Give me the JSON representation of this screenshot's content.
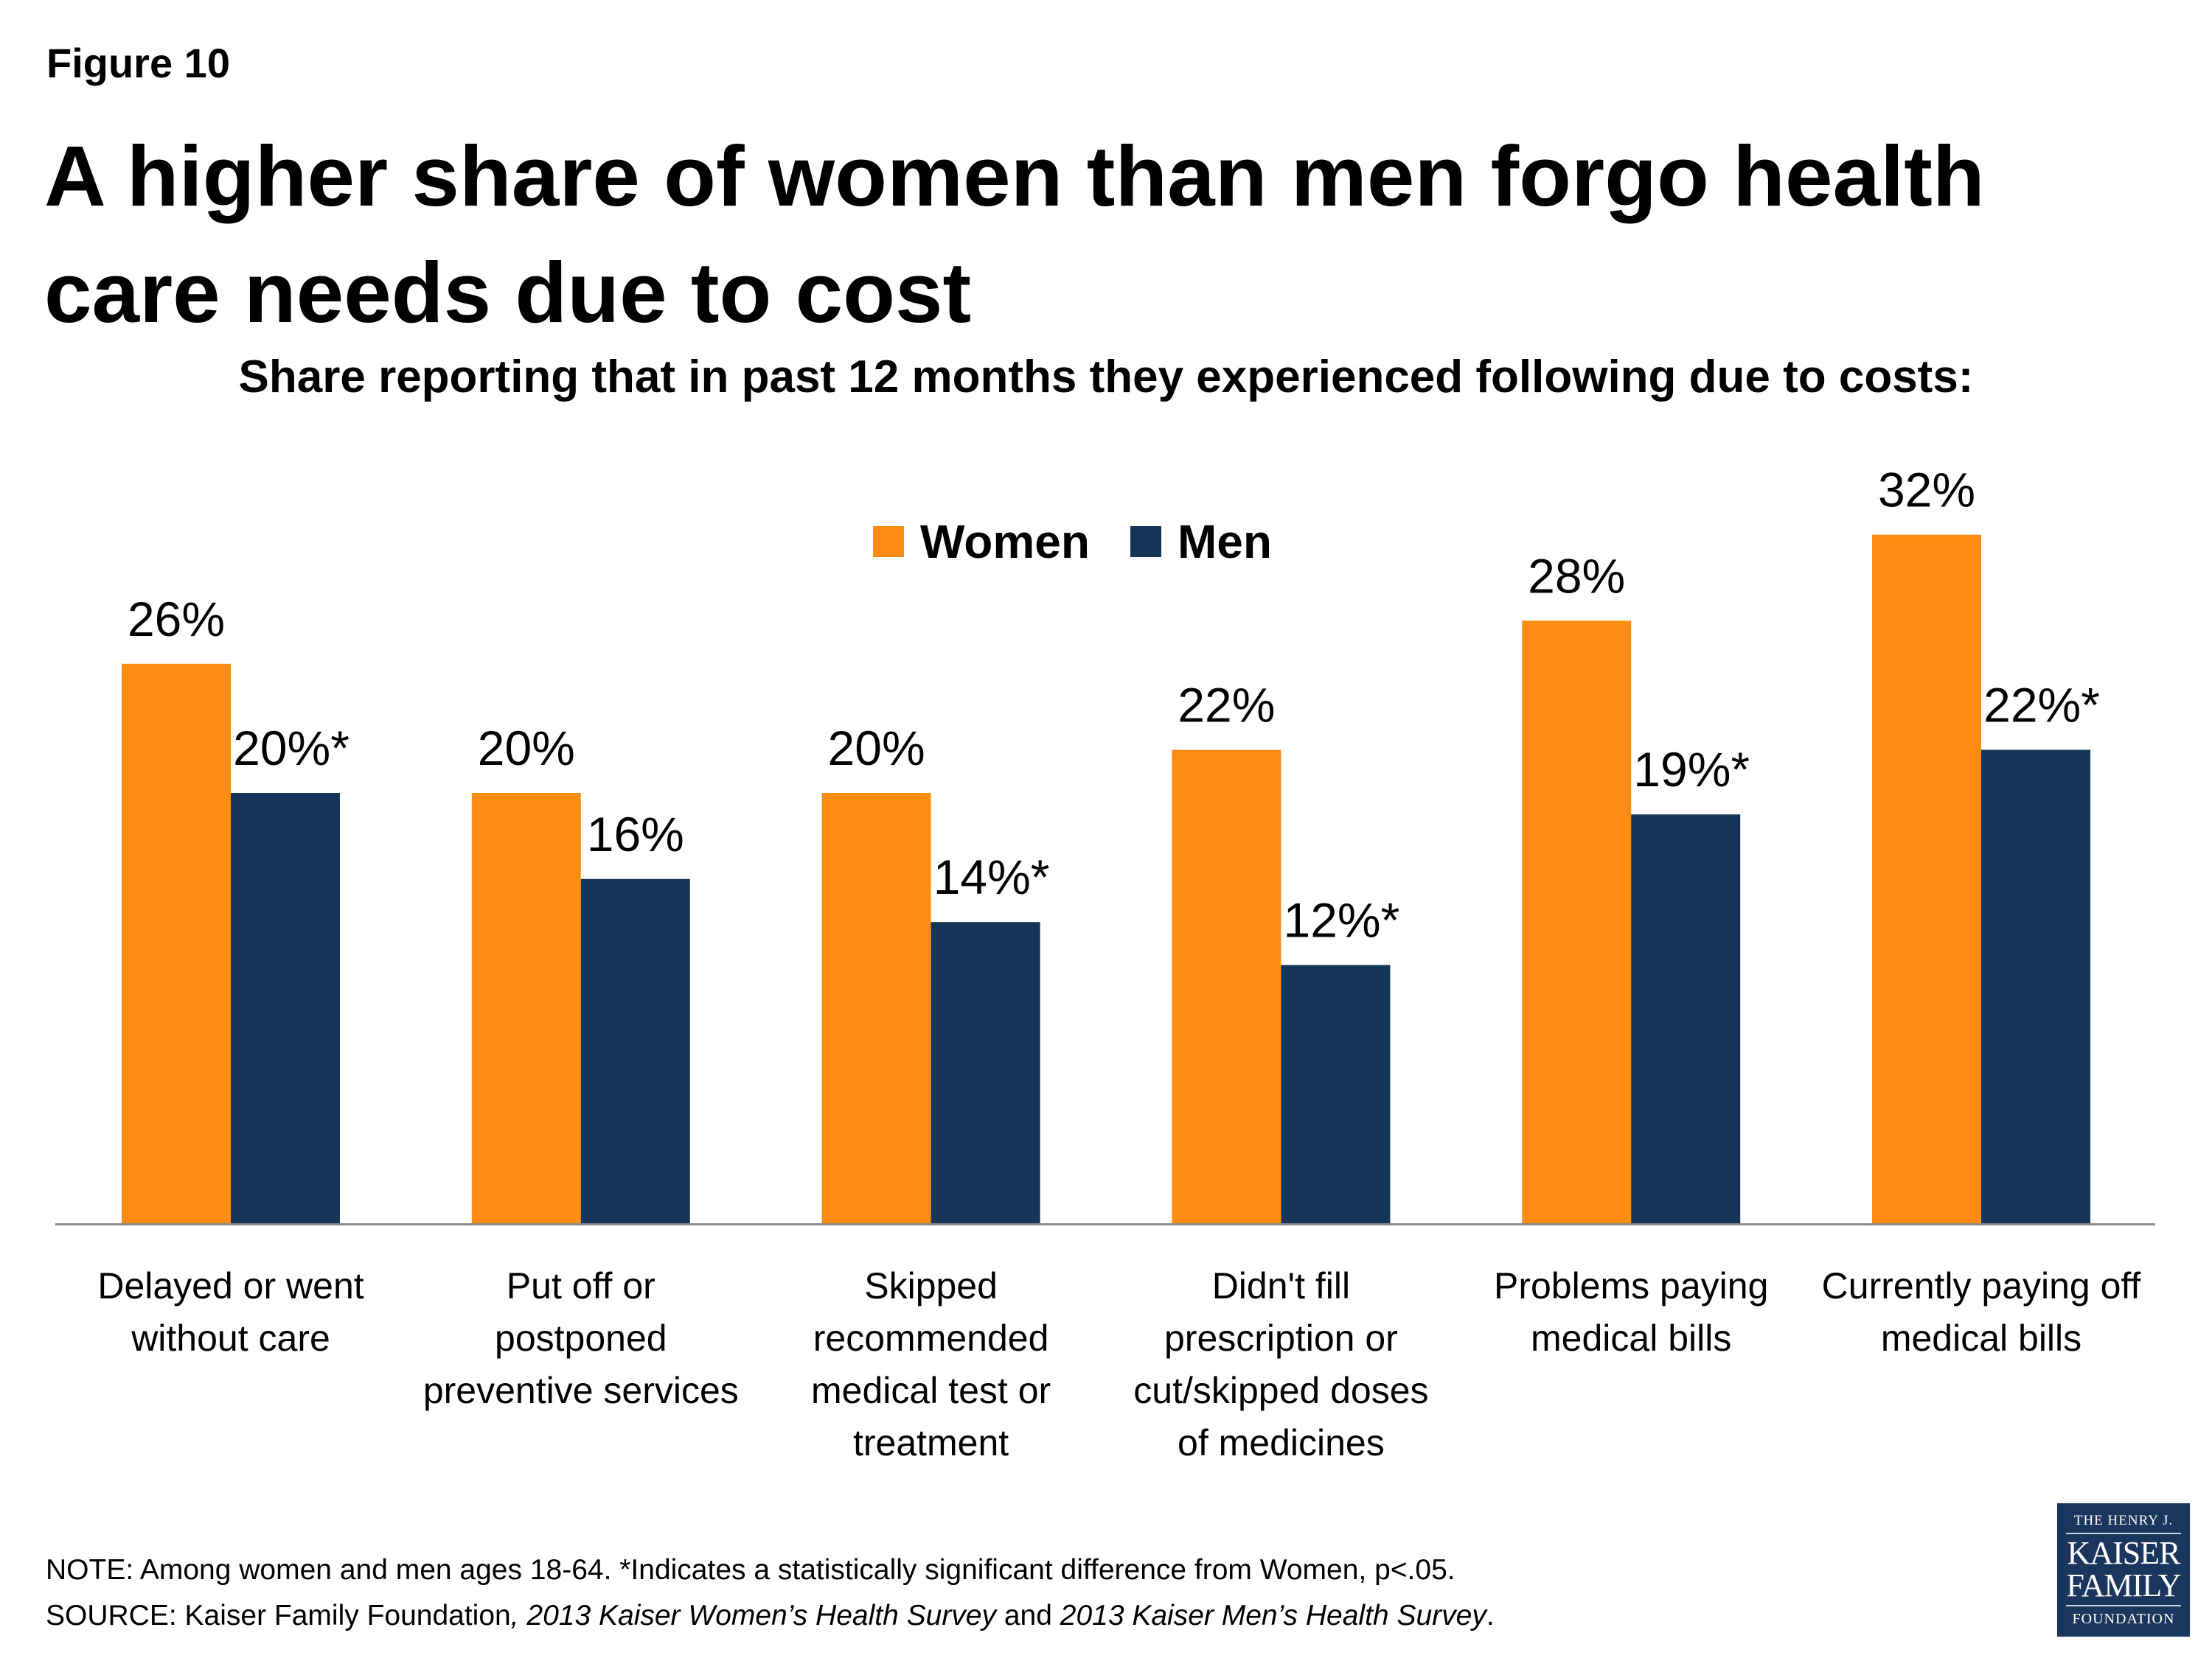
{
  "figure_label": "Figure 10",
  "title": "A higher share of women than men forgo health care needs due to cost",
  "subtitle": "Share reporting that in past 12 months they experienced following due to costs:",
  "colors": {
    "women": "#FF8C13",
    "men": "#163558",
    "axis": "#8C8C8C",
    "logo_bg": "#1B365D"
  },
  "legend": [
    {
      "label": "Women",
      "color": "#FF8C13"
    },
    {
      "label": "Men",
      "color": "#163558"
    }
  ],
  "chart_data": {
    "type": "bar",
    "title": "Share reporting that in past 12 months they experienced following due to costs:",
    "xlabel": "",
    "ylabel": "",
    "ylim": [
      0,
      32
    ],
    "grid": false,
    "legend_position": "top-center",
    "categories": [
      [
        "Delayed or went",
        "without care"
      ],
      [
        "Put off or",
        "postponed",
        "preventive services"
      ],
      [
        "Skipped",
        "recommended",
        "medical test or",
        "treatment"
      ],
      [
        "Didn't fill",
        "prescription or",
        "cut/skipped doses",
        "of medicines"
      ],
      [
        "Problems paying",
        "medical bills"
      ],
      [
        "Currently paying off",
        "medical bills"
      ]
    ],
    "series": [
      {
        "name": "Women",
        "values": [
          26,
          20,
          20,
          22,
          28,
          32
        ],
        "labels": [
          "26%",
          "20%",
          "20%",
          "22%",
          "28%",
          "32%"
        ]
      },
      {
        "name": "Men",
        "values": [
          20,
          16,
          14,
          12,
          19,
          22
        ],
        "labels": [
          "20%*",
          "16%",
          "14%*",
          "12%*",
          "19%*",
          "22%*"
        ]
      }
    ]
  },
  "footnote": {
    "note": "NOTE: Among women and men ages 18-64. *Indicates a statistically significant difference from Women, p<.05.",
    "source_prefix": "SOURCE: Kaiser Family Foundation",
    "source_italic_1": ", 2013 Kaiser Women’s Health Survey",
    "source_mid": " and ",
    "source_italic_2": "2013 Kaiser Men’s Health Survey",
    "source_end": "."
  },
  "logo": {
    "line1": "THE HENRY J.",
    "line2": "KAISER",
    "line3": "FAMILY",
    "line4": "FOUNDATION"
  }
}
